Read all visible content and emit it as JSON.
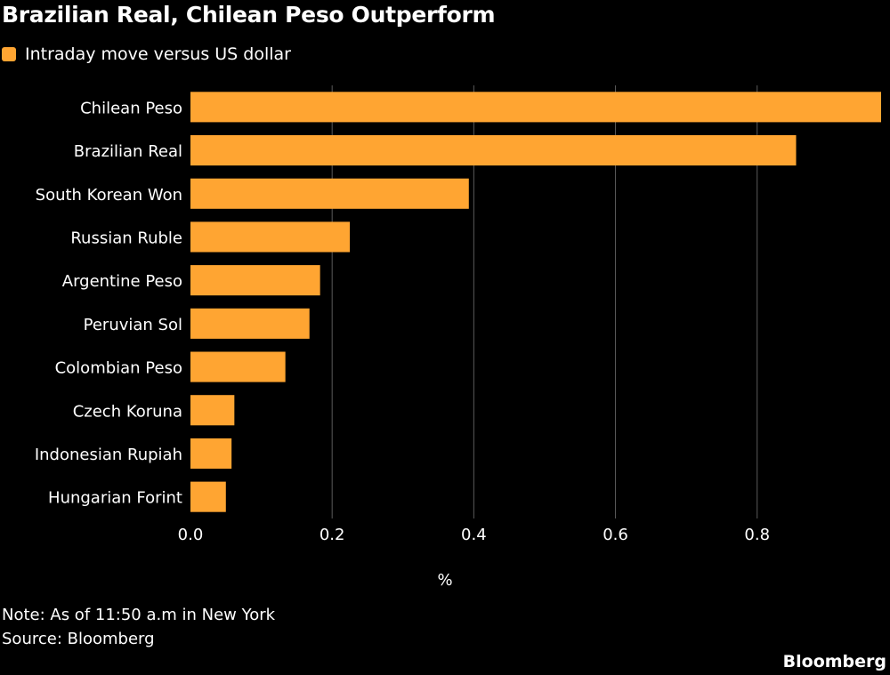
{
  "colors": {
    "background": "#000000",
    "bar": "#FFA532",
    "text": "#FFFFFF",
    "grid": "#5a5a5a"
  },
  "header": {
    "title": "Brazilian Real, Chilean Peso Outperform"
  },
  "legend": {
    "label": "Intraday move versus US dollar",
    "icon": "square-swatch"
  },
  "footer": {
    "note": "Note: As of 11:50 a.m in New York",
    "source": "Source: Bloomberg",
    "brand": "Bloomberg"
  },
  "chart_data": {
    "type": "bar",
    "orientation": "horizontal",
    "categories": [
      "Chilean Peso",
      "Brazilian Real",
      "South Korean Won",
      "Russian Ruble",
      "Argentine Peso",
      "Peruvian Sol",
      "Colombian Peso",
      "Czech Koruna",
      "Indonesian Rupiah",
      "Hungarian Forint"
    ],
    "values": [
      0.975,
      0.855,
      0.393,
      0.225,
      0.183,
      0.168,
      0.134,
      0.062,
      0.058,
      0.05
    ],
    "xlabel": "%",
    "ylabel": "",
    "xlim": [
      0,
      0.975
    ],
    "xticks": [
      0.0,
      0.2,
      0.4,
      0.6,
      0.8
    ],
    "xtick_labels": [
      "0.0",
      "0.2",
      "0.4",
      "0.6",
      "0.8"
    ],
    "grid": true,
    "legend_position": "top-left"
  }
}
